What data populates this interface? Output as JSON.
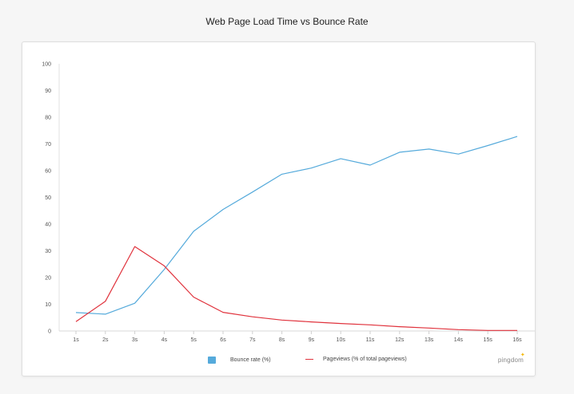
{
  "chart_data": {
    "type": "line",
    "title": "Web Page Load Time vs Bounce Rate",
    "xlabel": "",
    "ylabel": "",
    "categories": [
      "1s",
      "2s",
      "3s",
      "4s",
      "5s",
      "6s",
      "7s",
      "8s",
      "9s",
      "10s",
      "11s",
      "12s",
      "13s",
      "14s",
      "15s",
      "16s"
    ],
    "yticks": [
      0,
      10,
      20,
      30,
      40,
      50,
      60,
      70,
      80,
      90,
      100
    ],
    "ylim": [
      0,
      100
    ],
    "grid": false,
    "legend_position": "bottom",
    "series": [
      {
        "name": "Bounce rate  (%)",
        "color": "#55aadb",
        "legend_marker": "box",
        "values": [
          6.9,
          6.3,
          10.4,
          23.0,
          37.3,
          45.5,
          52.0,
          58.7,
          61.0,
          64.5,
          62.1,
          66.9,
          68.1,
          66.2,
          69.4,
          72.8
        ]
      },
      {
        "name": "Pageviews (% of total pageviews)",
        "color": "#e0323c",
        "legend_marker": "line",
        "values": [
          3.5,
          11.1,
          31.6,
          24.4,
          12.7,
          7.0,
          5.3,
          4.1,
          3.4,
          2.8,
          2.3,
          1.6,
          1.1,
          0.5,
          0.2,
          0.2
        ]
      }
    ]
  },
  "brand": {
    "name": "pingdom",
    "accent_color": "#f3b500"
  }
}
